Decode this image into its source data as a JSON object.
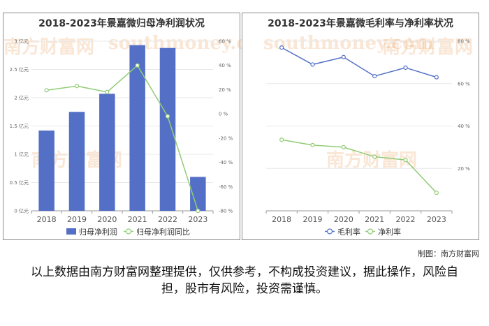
{
  "chart_data": [
    {
      "type": "bar",
      "title": "2018-2023年景嘉微归母净利润状况",
      "categories": [
        "2018",
        "2019",
        "2020",
        "2021",
        "2022",
        "2023"
      ],
      "y_ticks": [
        "0 亿元",
        "0.5 亿元",
        "1 亿元",
        "1.5 亿元",
        "2 亿元",
        "2.5 亿元",
        "3 亿元"
      ],
      "y2_ticks": [
        "-80 %",
        "-60 %",
        "-40 %",
        "-20 %",
        "0 %",
        "20 %",
        "40 %",
        "60 %"
      ],
      "ylim": [
        0,
        3
      ],
      "y2lim": [
        -80,
        60
      ],
      "series": [
        {
          "name": "归母净利润",
          "kind": "bar",
          "axis": "left",
          "color": "#5470c6",
          "values": [
            1.42,
            1.75,
            2.07,
            2.93,
            2.88,
            0.6
          ]
        },
        {
          "name": "归母净利润同比",
          "kind": "line",
          "axis": "right",
          "color": "#91cc75",
          "values": [
            19.5,
            23,
            18,
            40,
            -2,
            -80
          ]
        }
      ],
      "legend_position": "bottom"
    },
    {
      "type": "line",
      "title": "2018-2023年景嘉微毛利率与净利率状况",
      "categories": [
        "2018",
        "2019",
        "2020",
        "2021",
        "2022",
        "2023"
      ],
      "y_ticks": [
        "20 %",
        "40 %",
        "60 %",
        "80 %"
      ],
      "ylim": [
        0,
        80
      ],
      "series": [
        {
          "name": "毛利率",
          "color": "#5470c6",
          "values": [
            77,
            69,
            72.5,
            63.5,
            67.5,
            63
          ]
        },
        {
          "name": "净利率",
          "color": "#91cc75",
          "values": [
            33.5,
            31,
            30,
            25.5,
            24,
            8.5
          ]
        }
      ],
      "legend_position": "bottom"
    }
  ],
  "watermark": {
    "brand": "南方财富网",
    "site": "southmoney.com"
  },
  "credit": "制图：南方财富网",
  "disclaimer": "以上数据由南方财富网整理提供，仅供参考，不构成投资建议，据此操作，风险自担，股市有风险，投资需谨慎。"
}
